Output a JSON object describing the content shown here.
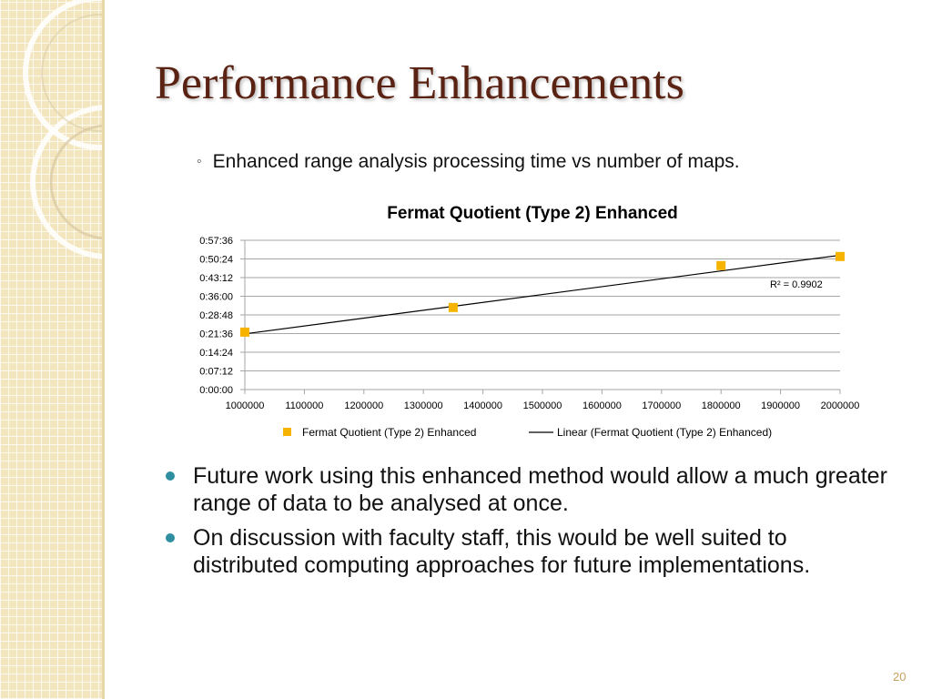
{
  "slide": {
    "title": "Performance Enhancements",
    "subbullet": "Enhanced range analysis processing time vs number of maps.",
    "bullets": [
      "Future work using this enhanced method would allow a much greater range of data to be analysed at once.",
      "On discussion with faculty staff, this would be well suited to distributed computing approaches for future implementations."
    ],
    "page_number": "20"
  },
  "colors": {
    "title": "#5a2212",
    "marker": "#f6b400",
    "trendline": "#000000",
    "bullet_dot": "#2f8fa0",
    "sidebar": "#f3e6bf"
  },
  "chart_data": {
    "type": "scatter",
    "title": "Fermat Quotient (Type 2) Enhanced",
    "xlabel": "",
    "ylabel": "",
    "x_ticks": [
      "1000000",
      "1100000",
      "1200000",
      "1300000",
      "1400000",
      "1500000",
      "1600000",
      "1700000",
      "1800000",
      "1900000",
      "2000000"
    ],
    "y_ticks": [
      "0:00:00",
      "0:07:12",
      "0:14:24",
      "0:21:36",
      "0:28:48",
      "0:36:00",
      "0:43:12",
      "0:50:24",
      "0:57:36"
    ],
    "xlim": [
      1000000,
      2000000
    ],
    "ylim": [
      "0:00:00",
      "0:57:36"
    ],
    "grid": true,
    "legend_position": "bottom",
    "series": [
      {
        "name": "Fermat Quotient (Type 2) Enhanced",
        "marker": "square",
        "points": [
          {
            "x": 1000000,
            "y": "0:22:10"
          },
          {
            "x": 1350000,
            "y": "0:31:40"
          },
          {
            "x": 1800000,
            "y": "0:47:50"
          },
          {
            "x": 2000000,
            "y": "0:51:20"
          }
        ]
      }
    ],
    "trendline": {
      "name": "Linear (Fermat Quotient (Type 2) Enhanced)",
      "type": "linear",
      "r_squared": "R² = 0.9902",
      "start": {
        "x": 1000000,
        "y": "0:21:30"
      },
      "end": {
        "x": 2000000,
        "y": "0:51:50"
      }
    }
  }
}
